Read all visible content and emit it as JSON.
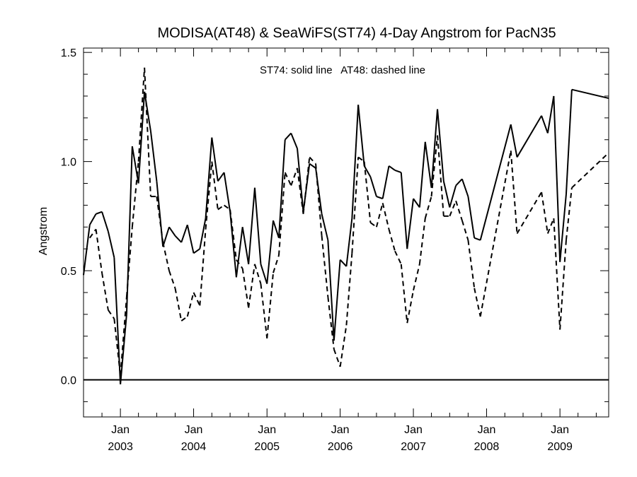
{
  "chart_data": {
    "type": "line",
    "title": "MODISA(AT48) & SeaWiFS(ST74) 4-Day Angstrom for PacN35",
    "annotation": "ST74: solid line   AT48: dashed line",
    "ylabel": "Angstrom",
    "xlim": [
      "2002-07-01",
      "2009-09-01"
    ],
    "ylim": [
      -0.17,
      1.52
    ],
    "y_ticks": [
      0.0,
      0.5,
      1.0,
      1.5
    ],
    "y_tick_labels": [
      "0.0",
      "0.5",
      "1.0",
      "1.5"
    ],
    "x_ticks": [
      {
        "date": "2003-01-01",
        "month": "Jan",
        "year": "2003"
      },
      {
        "date": "2004-01-01",
        "month": "Jan",
        "year": "2004"
      },
      {
        "date": "2005-01-01",
        "month": "Jan",
        "year": "2005"
      },
      {
        "date": "2006-01-01",
        "month": "Jan",
        "year": "2006"
      },
      {
        "date": "2007-01-01",
        "month": "Jan",
        "year": "2007"
      },
      {
        "date": "2008-01-01",
        "month": "Jan",
        "year": "2008"
      },
      {
        "date": "2009-01-01",
        "month": "Jan",
        "year": "2009"
      }
    ],
    "reference_line": {
      "y": 0.0
    },
    "grid": false,
    "series": [
      {
        "name": "ST74",
        "style": "solid",
        "color": "#000000",
        "x": [
          "2002-07-01",
          "2002-08-01",
          "2002-09-01",
          "2002-10-01",
          "2002-11-01",
          "2002-12-01",
          "2003-01-01",
          "2003-02-01",
          "2003-03-01",
          "2003-04-01",
          "2003-05-01",
          "2003-06-01",
          "2003-07-01",
          "2003-08-01",
          "2003-09-01",
          "2003-10-01",
          "2003-11-01",
          "2003-12-01",
          "2004-01-01",
          "2004-02-01",
          "2004-03-01",
          "2004-04-01",
          "2004-05-01",
          "2004-06-01",
          "2004-07-01",
          "2004-08-01",
          "2004-09-01",
          "2004-10-01",
          "2004-11-01",
          "2004-12-01",
          "2005-01-01",
          "2005-02-01",
          "2005-03-01",
          "2005-04-01",
          "2005-05-01",
          "2005-06-01",
          "2005-07-01",
          "2005-08-01",
          "2005-09-01",
          "2005-10-01",
          "2005-11-01",
          "2005-12-01",
          "2006-01-01",
          "2006-02-01",
          "2006-03-01",
          "2006-04-01",
          "2006-05-01",
          "2006-06-01",
          "2006-07-01",
          "2006-08-01",
          "2006-09-01",
          "2006-10-01",
          "2006-11-01",
          "2006-12-01",
          "2007-01-01",
          "2007-02-01",
          "2007-03-01",
          "2007-04-01",
          "2007-05-01",
          "2007-06-01",
          "2007-07-01",
          "2007-08-01",
          "2007-09-01",
          "2007-10-01",
          "2007-11-01",
          "2007-12-01",
          "2008-05-01",
          "2008-06-01",
          "2008-10-01",
          "2008-11-01",
          "2008-12-01",
          "2009-01-01",
          "2009-02-01",
          "2009-03-01",
          "2009-09-01"
        ],
        "values": [
          0.48,
          0.71,
          0.76,
          0.77,
          0.68,
          0.56,
          -0.02,
          0.3,
          1.07,
          0.9,
          1.32,
          1.14,
          0.91,
          0.61,
          0.7,
          0.66,
          0.63,
          0.71,
          0.58,
          0.6,
          0.74,
          1.11,
          0.91,
          0.95,
          0.77,
          0.47,
          0.7,
          0.53,
          0.88,
          0.53,
          0.44,
          0.73,
          0.65,
          1.1,
          1.13,
          1.06,
          0.77,
          0.99,
          0.97,
          0.76,
          0.64,
          0.18,
          0.55,
          0.52,
          0.74,
          1.26,
          0.98,
          0.93,
          0.84,
          0.83,
          0.98,
          0.96,
          0.95,
          0.6,
          0.83,
          0.79,
          1.09,
          0.88,
          1.24,
          0.91,
          0.79,
          0.89,
          0.92,
          0.84,
          0.65,
          0.64,
          1.17,
          1.02,
          1.21,
          1.13,
          1.3,
          0.54,
          0.85,
          1.33,
          1.29
        ]
      },
      {
        "name": "AT48",
        "style": "dashed",
        "color": "#000000",
        "x": [
          "2002-08-01",
          "2002-09-01",
          "2002-10-01",
          "2002-11-01",
          "2002-12-01",
          "2003-01-01",
          "2003-02-01",
          "2003-03-01",
          "2003-04-01",
          "2003-05-01",
          "2003-06-01",
          "2003-07-01",
          "2003-08-01",
          "2003-09-01",
          "2003-10-01",
          "2003-11-01",
          "2003-12-01",
          "2004-01-01",
          "2004-02-01",
          "2004-03-01",
          "2004-04-01",
          "2004-05-01",
          "2004-06-01",
          "2004-07-01",
          "2004-08-01",
          "2004-09-01",
          "2004-10-01",
          "2004-11-01",
          "2004-12-01",
          "2005-01-01",
          "2005-02-01",
          "2005-03-01",
          "2005-04-01",
          "2005-05-01",
          "2005-06-01",
          "2005-07-01",
          "2005-08-01",
          "2005-09-01",
          "2005-10-01",
          "2005-11-01",
          "2005-12-01",
          "2006-01-01",
          "2006-02-01",
          "2006-03-01",
          "2006-04-01",
          "2006-05-01",
          "2006-06-01",
          "2006-07-01",
          "2006-08-01",
          "2006-09-01",
          "2006-10-01",
          "2006-11-01",
          "2006-12-01",
          "2007-01-01",
          "2007-02-01",
          "2007-03-01",
          "2007-04-01",
          "2007-05-01",
          "2007-06-01",
          "2007-07-01",
          "2007-08-01",
          "2007-09-01",
          "2007-10-01",
          "2007-11-01",
          "2007-12-01",
          "2008-05-01",
          "2008-06-01",
          "2008-10-01",
          "2008-11-01",
          "2008-12-01",
          "2009-01-01",
          "2009-02-01",
          "2009-03-01",
          "2009-09-01"
        ],
        "values": [
          0.65,
          0.69,
          0.49,
          0.32,
          0.28,
          0.02,
          0.38,
          0.7,
          1.0,
          1.43,
          0.84,
          0.84,
          0.63,
          0.5,
          0.42,
          0.27,
          0.29,
          0.4,
          0.34,
          0.69,
          1.0,
          0.78,
          0.8,
          0.78,
          0.55,
          0.51,
          0.33,
          0.53,
          0.44,
          0.19,
          0.49,
          0.57,
          0.95,
          0.89,
          0.97,
          0.76,
          1.02,
          0.99,
          0.66,
          0.38,
          0.14,
          0.06,
          0.25,
          0.58,
          1.02,
          1.0,
          0.72,
          0.7,
          0.81,
          0.69,
          0.59,
          0.53,
          0.26,
          0.41,
          0.53,
          0.74,
          0.84,
          1.12,
          0.75,
          0.75,
          0.82,
          0.73,
          0.64,
          0.42,
          0.29,
          1.05,
          0.67,
          0.86,
          0.67,
          0.74,
          0.23,
          0.64,
          0.88,
          1.04
        ]
      }
    ]
  }
}
